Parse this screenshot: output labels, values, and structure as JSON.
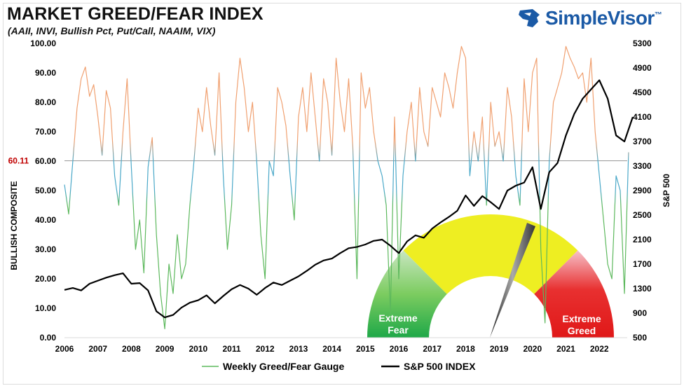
{
  "title": "MARKET GREED/FEAR INDEX",
  "subtitle": "(AAII, INVI, Bullish Pct, Put/Call, NAAIM, VIX)",
  "logo": {
    "text": "SimpleVisor",
    "tm": "™"
  },
  "gauge": {
    "fear_label_1": "Extreme",
    "fear_label_2": "Fear",
    "greed_label_1": "Extreme",
    "greed_label_2": "Greed"
  },
  "colors": {
    "greed": "#f0a070",
    "neutral": "#4aa8c8",
    "fear": "#5cb85c",
    "sp500": "#000000",
    "reference_label": "#c00000",
    "gauge_yellow": "#eeee22",
    "gauge_green": "#22aa44",
    "gauge_red": "#e52222",
    "brand": "#1b5aa6"
  },
  "chart_data": {
    "type": "line",
    "xlabel": "",
    "ylabel_left": "BULLISH COMPOSITE",
    "ylabel_right": "S&P 500",
    "x_ticks": [
      "2006",
      "2007",
      "2008",
      "2009",
      "2010",
      "2011",
      "2012",
      "2013",
      "2014",
      "2015",
      "2016",
      "2017",
      "2018",
      "2019",
      "2020",
      "2021",
      "2022"
    ],
    "y_left_ticks": [
      "0.00",
      "10.00",
      "20.00",
      "30.00",
      "40.00",
      "50.00",
      "60.00",
      "70.00",
      "80.00",
      "90.00",
      "100.00"
    ],
    "y_right_ticks": [
      "500",
      "900",
      "1300",
      "1700",
      "2100",
      "2500",
      "2900",
      "3300",
      "3700",
      "4100",
      "4500",
      "4900",
      "5300"
    ],
    "ylim_left": [
      0,
      100
    ],
    "ylim_right": [
      500,
      5300
    ],
    "xlim": [
      2006,
      2022.8
    ],
    "grid": false,
    "legend_position": "bottom",
    "reference_line": {
      "value": 60.11,
      "label": "60.11"
    },
    "series": [
      {
        "name": "Weekly Greed/Fear Gauge",
        "axis": "left",
        "start": 2006,
        "step_years": 0.125,
        "values": [
          52,
          42,
          60,
          78,
          88,
          92,
          82,
          86,
          75,
          62,
          84,
          78,
          55,
          45,
          70,
          88,
          58,
          30,
          40,
          22,
          58,
          68,
          35,
          15,
          3,
          25,
          15,
          35,
          20,
          25,
          45,
          60,
          78,
          70,
          85,
          72,
          62,
          90,
          55,
          30,
          45,
          80,
          95,
          85,
          70,
          80,
          60,
          35,
          20,
          60,
          55,
          85,
          80,
          72,
          55,
          40,
          75,
          85,
          70,
          90,
          75,
          60,
          88,
          80,
          62,
          95,
          80,
          70,
          88,
          65,
          20,
          90,
          78,
          85,
          70,
          60,
          55,
          45,
          8,
          75,
          20,
          55,
          70,
          80,
          60,
          85,
          70,
          65,
          85,
          80,
          75,
          90,
          85,
          78,
          90,
          99,
          95,
          55,
          70,
          60,
          75,
          45,
          80,
          65,
          70,
          60,
          85,
          75,
          55,
          45,
          88,
          70,
          90,
          95,
          30,
          5,
          60,
          80,
          85,
          90,
          99,
          95,
          92,
          88,
          90,
          80,
          95,
          70,
          55,
          40,
          25,
          20,
          55,
          50,
          15,
          63
        ]
      },
      {
        "name": "S&P 500 INDEX",
        "axis": "right",
        "start": 2006,
        "step_years": 0.25,
        "values": [
          1280,
          1310,
          1270,
          1380,
          1430,
          1480,
          1520,
          1550,
          1380,
          1390,
          1270,
          930,
          830,
          870,
          990,
          1070,
          1110,
          1190,
          1060,
          1180,
          1290,
          1360,
          1300,
          1200,
          1310,
          1400,
          1360,
          1430,
          1500,
          1590,
          1690,
          1760,
          1790,
          1880,
          1960,
          1980,
          2020,
          2080,
          2100,
          2000,
          1880,
          2070,
          2170,
          2130,
          2280,
          2380,
          2470,
          2570,
          2820,
          2650,
          2810,
          2710,
          2600,
          2900,
          2980,
          3030,
          3280,
          2600,
          3200,
          3350,
          3800,
          4150,
          4400,
          4550,
          4700,
          4400,
          3800,
          3700,
          4100
        ]
      }
    ]
  }
}
